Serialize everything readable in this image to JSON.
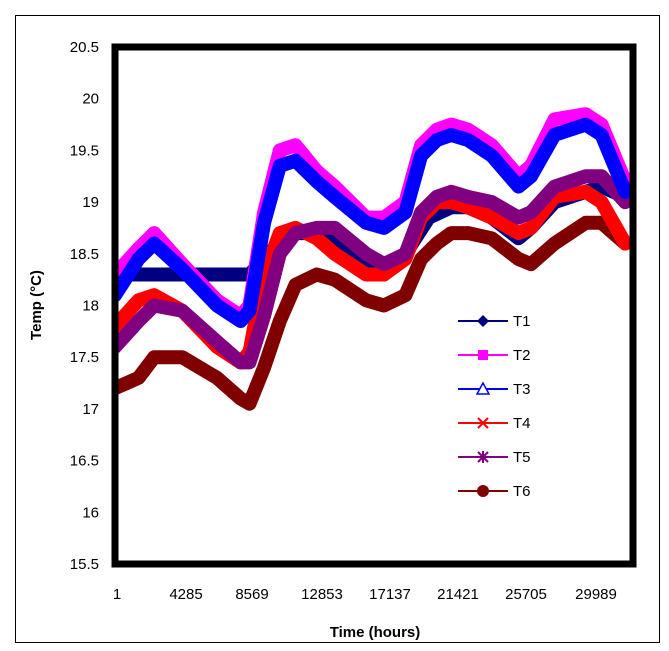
{
  "chart_data": {
    "type": "line",
    "xlabel": "Time (hours)",
    "ylabel": "Temp (°C)",
    "x_ticks": [
      "1",
      "4285",
      "8569",
      "12853",
      "17137",
      "21421",
      "25705",
      "29989"
    ],
    "x_range": [
      1,
      33000
    ],
    "ylim": [
      15.5,
      20.5
    ],
    "y_ticks": [
      "15.5",
      "16",
      "16.5",
      "17",
      "17.5",
      "18",
      "18.5",
      "19",
      "19.5",
      "20",
      "20.5"
    ],
    "grid": false,
    "legend_position": "right-center",
    "series": [
      {
        "name": "T1",
        "color": "#000080",
        "marker": "diamond",
        "x": [
          1,
          1500,
          2500,
          4285,
          6500,
          7500,
          8569,
          9500,
          11000,
          12853,
          14000,
          15500,
          17137,
          18500,
          20000,
          21421,
          22500,
          24000,
          25705,
          26500,
          28000,
          29989,
          31000,
          32500
        ],
        "y": [
          18.3,
          18.3,
          18.3,
          18.3,
          18.3,
          18.3,
          18.3,
          18.45,
          18.7,
          18.7,
          18.6,
          18.45,
          18.3,
          18.5,
          18.85,
          18.95,
          18.95,
          18.85,
          18.65,
          18.75,
          19.0,
          19.1,
          19.15,
          19.05
        ]
      },
      {
        "name": "T2",
        "color": "#ff00ff",
        "marker": "square",
        "x": [
          1,
          1500,
          2500,
          4285,
          6500,
          8000,
          8569,
          9500,
          10500,
          11500,
          12853,
          14000,
          16000,
          17137,
          18500,
          19500,
          20500,
          21421,
          22500,
          24000,
          25705,
          26500,
          28000,
          29989,
          31000,
          32500
        ],
        "y": [
          18.3,
          18.55,
          18.7,
          18.4,
          18.05,
          17.9,
          18.0,
          18.9,
          19.5,
          19.55,
          19.3,
          19.15,
          18.85,
          18.85,
          19.0,
          19.55,
          19.7,
          19.75,
          19.7,
          19.55,
          19.25,
          19.35,
          19.8,
          19.85,
          19.75,
          19.2
        ]
      },
      {
        "name": "T3",
        "color": "#0000ff",
        "marker": "triangle",
        "x": [
          1,
          1500,
          2500,
          4285,
          6500,
          8000,
          8569,
          9500,
          10500,
          11500,
          12853,
          14000,
          16000,
          17137,
          18500,
          19500,
          20500,
          21421,
          22500,
          24000,
          25705,
          26500,
          28000,
          29989,
          31000,
          32500
        ],
        "y": [
          18.1,
          18.45,
          18.6,
          18.35,
          18.0,
          17.85,
          17.95,
          18.8,
          19.35,
          19.4,
          19.2,
          19.05,
          18.8,
          18.75,
          18.9,
          19.45,
          19.6,
          19.65,
          19.6,
          19.45,
          19.15,
          19.25,
          19.65,
          19.75,
          19.65,
          19.1
        ]
      },
      {
        "name": "T4",
        "color": "#ff0000",
        "marker": "x",
        "x": [
          1,
          1500,
          2500,
          4285,
          6500,
          8000,
          8569,
          9500,
          10500,
          11500,
          12853,
          14000,
          16000,
          17137,
          18500,
          19500,
          20500,
          21421,
          22500,
          24000,
          25705,
          26500,
          28000,
          29989,
          31000,
          32500
        ],
        "y": [
          17.8,
          18.05,
          18.1,
          17.95,
          17.6,
          17.45,
          17.55,
          18.3,
          18.7,
          18.75,
          18.65,
          18.5,
          18.3,
          18.3,
          18.45,
          18.85,
          19.0,
          19.0,
          18.95,
          18.85,
          18.7,
          18.75,
          19.05,
          19.1,
          19.0,
          18.6
        ]
      },
      {
        "name": "T5",
        "color": "#800080",
        "marker": "asterisk",
        "x": [
          1,
          1500,
          2500,
          4285,
          6500,
          8000,
          8569,
          9500,
          10500,
          11500,
          12853,
          14000,
          16000,
          17137,
          18500,
          19500,
          20500,
          21421,
          22500,
          24000,
          25705,
          26500,
          28000,
          29989,
          31000,
          32500
        ],
        "y": [
          17.6,
          17.85,
          18.0,
          17.95,
          17.65,
          17.45,
          17.45,
          17.9,
          18.5,
          18.7,
          18.75,
          18.75,
          18.5,
          18.4,
          18.5,
          18.9,
          19.05,
          19.1,
          19.05,
          19.0,
          18.85,
          18.9,
          19.15,
          19.25,
          19.25,
          19.0
        ]
      },
      {
        "name": "T6",
        "color": "#800000",
        "marker": "circle",
        "x": [
          1,
          1500,
          2500,
          4285,
          6500,
          8000,
          8569,
          9500,
          10500,
          11500,
          12853,
          14000,
          16000,
          17137,
          18500,
          19500,
          20500,
          21421,
          22500,
          24000,
          25705,
          26500,
          28000,
          29989,
          31000,
          32500
        ],
        "y": [
          17.2,
          17.3,
          17.5,
          17.5,
          17.3,
          17.1,
          17.05,
          17.4,
          17.85,
          18.2,
          18.3,
          18.25,
          18.05,
          18.0,
          18.1,
          18.45,
          18.6,
          18.7,
          18.7,
          18.65,
          18.45,
          18.4,
          18.6,
          18.8,
          18.8,
          18.6
        ]
      }
    ]
  }
}
